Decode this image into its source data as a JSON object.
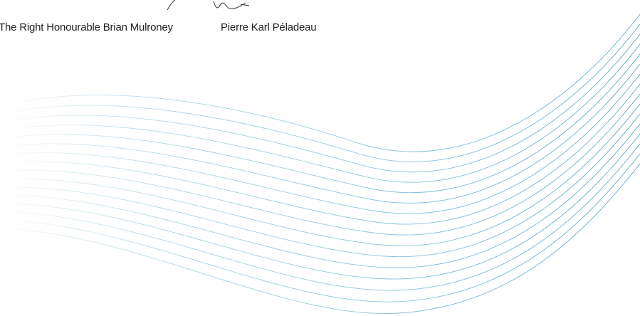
{
  "signatories": [
    {
      "name": "The Right Honourable Brian Mulroney"
    },
    {
      "name": "Pierre Karl Péladeau"
    }
  ]
}
